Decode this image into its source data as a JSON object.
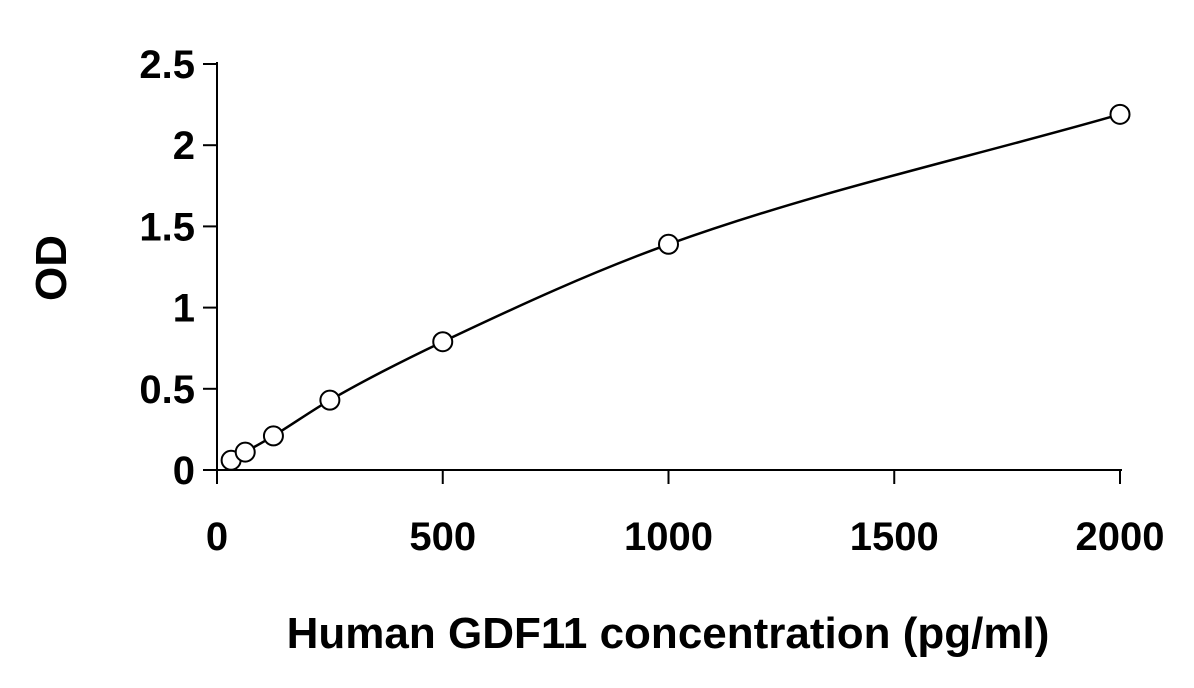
{
  "chart_data": {
    "type": "scatter",
    "title": "",
    "xlabel": "Human GDF11 concentration (pg/ml)",
    "ylabel": "OD",
    "xlim": [
      0,
      2000
    ],
    "ylim": [
      0,
      2.5
    ],
    "x_ticks": [
      0,
      500,
      1000,
      1500,
      2000
    ],
    "y_ticks": [
      0,
      0.5,
      1,
      1.5,
      2,
      2.5
    ],
    "x_tick_labels": [
      "0",
      "500",
      "1000",
      "1500",
      "2000"
    ],
    "y_tick_labels": [
      "0",
      "0.5",
      "1",
      "1.5",
      "2",
      "2.5"
    ],
    "grid": false,
    "legend": "none",
    "series": [
      {
        "marker": "open-circle",
        "line": "smooth-fit",
        "color": "#000000",
        "x": [
          31.25,
          62.5,
          125,
          250,
          500,
          1000,
          2000
        ],
        "y": [
          0.06,
          0.11,
          0.21,
          0.43,
          0.79,
          1.39,
          2.19
        ]
      }
    ]
  }
}
